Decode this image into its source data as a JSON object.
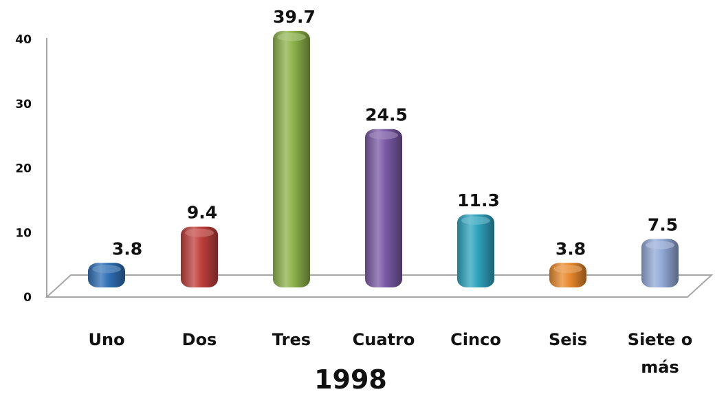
{
  "chart_data": {
    "type": "bar",
    "categories": [
      "Uno",
      "Dos",
      "Tres",
      "Cuatro",
      "Cinco",
      "Seis",
      "Siete o más"
    ],
    "values": [
      3.8,
      9.4,
      39.7,
      24.5,
      11.3,
      3.8,
      7.5
    ],
    "data_labels": [
      "3.8",
      "9.4",
      "39.7",
      "24.5",
      "11.3",
      "3.8",
      "7.5"
    ],
    "colors": [
      "#2f6fb5",
      "#c0403c",
      "#8db24a",
      "#7b5aa6",
      "#2fa4bf",
      "#e8892b",
      "#93a9d8"
    ],
    "xlabel": "1998",
    "ylim": [
      0,
      40
    ],
    "yticks": [
      0,
      10,
      20,
      30,
      40
    ],
    "grid": false,
    "style": "3d-cylinder"
  }
}
